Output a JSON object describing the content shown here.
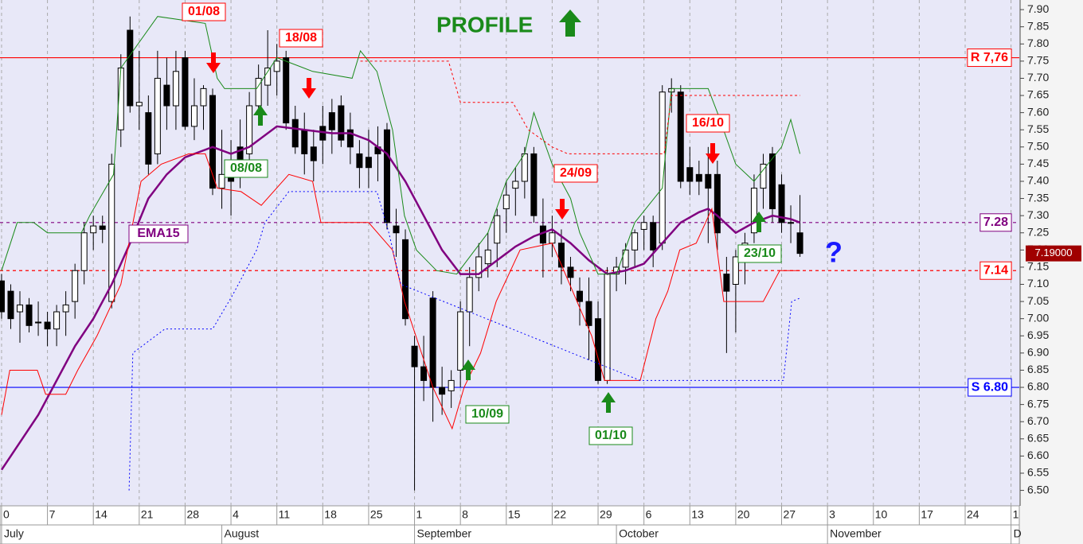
{
  "chart_data": {
    "type": "candlestick",
    "title": "PROFILE",
    "xlim": [
      -0.17,
      110.9
    ],
    "ylim": [
      6.455,
      7.928
    ],
    "grid": true,
    "up_color": "#ffffff",
    "down_color": "#000000",
    "x": [
      0,
      1,
      2,
      3,
      4,
      5,
      6,
      7,
      8,
      9,
      10,
      11,
      12,
      13,
      14,
      15,
      16,
      17,
      18,
      19,
      20,
      21,
      22,
      23,
      24,
      25,
      26,
      27,
      28,
      29,
      30,
      31,
      32,
      33,
      34,
      35,
      36,
      37,
      38,
      39,
      40,
      41,
      42,
      43,
      44,
      45,
      46,
      47,
      48,
      49,
      50,
      51,
      52,
      53,
      54,
      55,
      56,
      57,
      58,
      59,
      60,
      61,
      62,
      63,
      64,
      65,
      66,
      67,
      68,
      69,
      70,
      71,
      72,
      73,
      74,
      75,
      76,
      77,
      78,
      79,
      80,
      81,
      82,
      83,
      84,
      85,
      86,
      87
    ],
    "open": [
      7.11,
      7.08,
      7.02,
      7.04,
      6.99,
      6.99,
      6.97,
      7.02,
      7.05,
      7.14,
      7.25,
      7.27,
      7.05,
      7.55,
      7.84,
      7.62,
      7.6,
      7.48,
      7.68,
      7.62,
      7.76,
      7.56,
      7.62,
      7.65,
      7.38,
      7.42,
      7.5,
      7.48,
      7.62,
      7.68,
      7.72,
      7.76,
      7.58,
      7.55,
      7.5,
      7.56,
      7.6,
      7.62,
      7.55,
      7.48,
      7.47,
      7.5,
      7.55,
      7.27,
      7.23,
      6.92,
      6.86,
      7.06,
      6.8,
      6.79,
      6.85,
      7.02,
      7.12,
      7.16,
      7.22,
      7.32,
      7.38,
      7.4,
      7.48,
      7.27,
      7.22,
      7.22,
      7.15,
      7.08,
      7.05,
      7.0,
      6.82,
      7.13,
      7.15,
      7.2,
      7.26,
      7.28,
      7.22,
      7.66,
      7.66,
      7.44,
      7.42,
      7.42,
      7.42,
      7.13,
      7.1,
      7.18,
      7.25,
      7.38,
      7.48,
      7.39,
      7.28,
      7.25
    ],
    "high": [
      7.13,
      7.1,
      7.08,
      7.06,
      7.05,
      7.02,
      7.04,
      7.08,
      7.16,
      7.28,
      7.3,
      7.3,
      7.48,
      7.77,
      7.88,
      7.78,
      7.65,
      7.78,
      7.76,
      7.78,
      7.78,
      7.7,
      7.68,
      7.67,
      7.55,
      7.52,
      7.58,
      7.66,
      7.74,
      7.84,
      7.8,
      7.78,
      7.62,
      7.6,
      7.55,
      7.62,
      7.64,
      7.65,
      7.6,
      7.52,
      7.55,
      7.56,
      7.57,
      7.32,
      7.26,
      6.95,
      6.95,
      7.08,
      6.86,
      6.85,
      7.05,
      7.15,
      7.22,
      7.25,
      7.32,
      7.4,
      7.44,
      7.5,
      7.5,
      7.35,
      7.3,
      7.26,
      7.18,
      7.12,
      7.12,
      7.05,
      7.15,
      7.18,
      7.22,
      7.26,
      7.3,
      7.3,
      7.68,
      7.7,
      7.68,
      7.5,
      7.46,
      7.5,
      7.46,
      7.18,
      7.2,
      7.25,
      7.42,
      7.48,
      7.5,
      7.42,
      7.33,
      7.36
    ],
    "low": [
      7.0,
      6.97,
      6.93,
      6.96,
      6.95,
      6.92,
      6.92,
      6.95,
      7.0,
      7.1,
      7.2,
      7.22,
      7.03,
      7.5,
      7.6,
      7.55,
      7.42,
      7.45,
      7.55,
      7.55,
      7.55,
      7.52,
      7.55,
      7.36,
      7.32,
      7.3,
      7.38,
      7.45,
      7.58,
      7.62,
      7.65,
      7.55,
      7.48,
      7.42,
      7.4,
      7.45,
      7.48,
      7.5,
      7.45,
      7.38,
      7.38,
      7.4,
      7.26,
      7.18,
      6.98,
      6.5,
      6.76,
      6.7,
      6.72,
      6.74,
      6.8,
      6.92,
      7.08,
      7.12,
      7.15,
      7.25,
      7.3,
      7.35,
      7.28,
      7.12,
      7.18,
      7.1,
      7.08,
      6.98,
      6.88,
      6.81,
      6.81,
      7.08,
      7.1,
      7.15,
      7.2,
      7.15,
      7.2,
      7.6,
      7.38,
      7.36,
      7.36,
      7.22,
      7.2,
      6.9,
      6.96,
      7.1,
      7.22,
      7.32,
      7.28,
      7.25,
      7.22,
      7.18
    ],
    "close": [
      7.02,
      7.0,
      7.04,
      6.98,
      6.99,
      6.97,
      7.02,
      7.04,
      7.14,
      7.25,
      7.27,
      7.26,
      7.45,
      7.73,
      7.62,
      7.63,
      7.45,
      7.7,
      7.62,
      7.72,
      7.56,
      7.62,
      7.67,
      7.38,
      7.42,
      7.4,
      7.46,
      7.62,
      7.7,
      7.73,
      7.75,
      7.57,
      7.5,
      7.48,
      7.46,
      7.52,
      7.55,
      7.52,
      7.5,
      7.44,
      7.44,
      7.48,
      7.28,
      7.25,
      7.0,
      6.86,
      6.82,
      6.8,
      6.78,
      6.82,
      7.02,
      7.12,
      7.18,
      7.2,
      7.3,
      7.36,
      7.4,
      7.48,
      7.3,
      7.22,
      7.25,
      7.15,
      7.12,
      7.05,
      6.98,
      6.82,
      7.13,
      7.15,
      7.2,
      7.25,
      7.28,
      7.2,
      7.66,
      7.67,
      7.4,
      7.4,
      7.4,
      7.38,
      7.25,
      7.08,
      7.18,
      7.22,
      7.38,
      7.45,
      7.32,
      7.28,
      7.28,
      7.19
    ],
    "series": [
      {
        "name": "EMA15",
        "color": "#800080",
        "width": 2.5,
        "dash": "none",
        "x": [
          0,
          4,
          8,
          10,
          12,
          14,
          16,
          18,
          20,
          23,
          25,
          27,
          30,
          33,
          36,
          38,
          40,
          42,
          44,
          46,
          48,
          50,
          52,
          54,
          56,
          58,
          60,
          62,
          64,
          66,
          68,
          70,
          72,
          74,
          76,
          77,
          78,
          80,
          82,
          84,
          86,
          87
        ],
        "values": [
          6.56,
          6.72,
          6.92,
          7.0,
          7.1,
          7.22,
          7.35,
          7.42,
          7.47,
          7.5,
          7.48,
          7.5,
          7.56,
          7.55,
          7.54,
          7.54,
          7.52,
          7.48,
          7.4,
          7.3,
          7.2,
          7.13,
          7.13,
          7.17,
          7.21,
          7.24,
          7.26,
          7.22,
          7.17,
          7.13,
          7.14,
          7.16,
          7.22,
          7.28,
          7.31,
          7.32,
          7.3,
          7.25,
          7.28,
          7.3,
          7.29,
          7.28
        ]
      },
      {
        "color": "#1a8a1a",
        "width": 1,
        "dash": "none",
        "x": [
          0,
          1.7,
          3.5,
          5,
          8.7,
          9.6,
          12.2,
          13,
          17,
          22.2,
          23.5,
          24.3,
          27.8,
          30,
          33.9,
          38.2,
          39.1,
          40.9,
          42.6,
          43.9,
          45.2,
          47.4,
          49.6,
          53,
          55,
          57,
          58,
          60,
          62,
          63,
          65,
          67,
          69,
          72,
          73,
          77,
          78,
          80,
          82,
          85,
          86,
          87
        ],
        "values": [
          7.14,
          7.28,
          7.28,
          7.25,
          7.25,
          7.3,
          7.42,
          7.73,
          7.88,
          7.86,
          7.7,
          7.67,
          7.67,
          7.76,
          7.72,
          7.7,
          7.78,
          7.72,
          7.55,
          7.3,
          7.2,
          7.14,
          7.13,
          7.25,
          7.4,
          7.48,
          7.6,
          7.45,
          7.35,
          7.25,
          7.13,
          7.13,
          7.28,
          7.38,
          7.67,
          7.67,
          7.6,
          7.45,
          7.4,
          7.5,
          7.58,
          7.48
        ]
      },
      {
        "color": "#ff0000",
        "width": 1,
        "dash": "none",
        "x": [
          0,
          0.9,
          3.9,
          4.8,
          7,
          8.3,
          10.4,
          13,
          15.2,
          17.4,
          20.4,
          22.2,
          23.5,
          26.1,
          28.3,
          31.3,
          33.9,
          34.8,
          40,
          42.6,
          43.9,
          47,
          49.1,
          50.4,
          52.2,
          53.9,
          56.5,
          60,
          64.3,
          65.7,
          69.6,
          71.3,
          72.6,
          73.9,
          75.7,
          77.4,
          78.7,
          83,
          84.8,
          87
        ],
        "values": [
          6.72,
          6.85,
          6.85,
          6.78,
          6.78,
          6.85,
          6.95,
          7.1,
          7.4,
          7.45,
          7.48,
          7.48,
          7.38,
          7.37,
          7.33,
          7.42,
          7.4,
          7.28,
          7.28,
          7.2,
          7.05,
          6.8,
          6.68,
          6.8,
          6.9,
          7.05,
          7.2,
          7.22,
          6.95,
          6.82,
          6.82,
          7.0,
          7.08,
          7.2,
          7.22,
          7.32,
          7.05,
          7.05,
          7.14,
          7.14
        ]
      },
      {
        "color": "#ff0000",
        "width": 1,
        "dash": "3,3",
        "x": [
          39.1,
          48.7,
          50,
          55.7,
          57.4,
          60,
          61.7,
          72.2,
          73,
          87
        ],
        "values": [
          7.75,
          7.75,
          7.63,
          7.63,
          7.55,
          7.5,
          7.48,
          7.48,
          7.65,
          7.65
        ]
      },
      {
        "color": "#0000ff",
        "width": 1,
        "dash": "2,3",
        "x": [
          13.9,
          14.3,
          17.8,
          23,
          25.2,
          27.8,
          28.7,
          31.3,
          40.9,
          42.2,
          43.5,
          69.6,
          85.2,
          86.1,
          87
        ],
        "values": [
          6.5,
          6.9,
          6.97,
          6.97,
          7.07,
          7.2,
          7.28,
          7.37,
          7.37,
          7.25,
          7.1,
          6.82,
          6.82,
          7.05,
          7.06
        ]
      }
    ],
    "levels": [
      {
        "value": 7.76,
        "label": "R 7,76",
        "color": "#ff0000",
        "dash": "none"
      },
      {
        "value": 7.28,
        "label": "7.28",
        "color": "#800080",
        "dash": "4,4"
      },
      {
        "value": 7.14,
        "label": "7.14",
        "color": "#ff0000",
        "dash": "4,4"
      },
      {
        "value": 6.8,
        "label": "S 6.80",
        "color": "#0000ff",
        "dash": "none"
      }
    ],
    "last_price": {
      "value": 7.19,
      "label": "7.19000"
    },
    "annotations": [
      "01/08",
      "18/08",
      "08/08",
      "10/09",
      "24/09",
      "01/10",
      "16/10",
      "23/10",
      "?"
    ],
    "yticks": [
      {
        "value": 6.5,
        "label": "6.50"
      },
      {
        "value": 6.55,
        "label": "6.55"
      },
      {
        "value": 6.6,
        "label": "6.60"
      },
      {
        "value": 6.65,
        "label": "6.65"
      },
      {
        "value": 6.7,
        "label": "6.70"
      },
      {
        "value": 6.75,
        "label": "6.75"
      },
      {
        "value": 6.8,
        "label": "6.80"
      },
      {
        "value": 6.85,
        "label": "6.85"
      },
      {
        "value": 6.9,
        "label": "6.90"
      },
      {
        "value": 6.95,
        "label": "6.95"
      },
      {
        "value": 7.0,
        "label": "7.00"
      },
      {
        "value": 7.05,
        "label": "7.05"
      },
      {
        "value": 7.1,
        "label": "7.10"
      },
      {
        "value": 7.15,
        "label": "7.15"
      },
      {
        "value": 7.2,
        "label": "7.20"
      },
      {
        "value": 7.25,
        "label": "7.25"
      },
      {
        "value": 7.3,
        "label": "7.30"
      },
      {
        "value": 7.35,
        "label": "7.35"
      },
      {
        "value": 7.4,
        "label": "7.40"
      },
      {
        "value": 7.45,
        "label": "7.45"
      },
      {
        "value": 7.5,
        "label": "7.50"
      },
      {
        "value": 7.55,
        "label": "7.55"
      },
      {
        "value": 7.6,
        "label": "7.60"
      },
      {
        "value": 7.65,
        "label": "7.65"
      },
      {
        "value": 7.7,
        "label": "7.70"
      },
      {
        "value": 7.75,
        "label": "7.75"
      },
      {
        "value": 7.8,
        "label": "7.80"
      },
      {
        "value": 7.85,
        "label": "7.85"
      },
      {
        "value": 7.9,
        "label": "7.90"
      }
    ],
    "xticks": [
      {
        "value": 0,
        "label": "0"
      },
      {
        "value": 5,
        "label": "7"
      },
      {
        "value": 10,
        "label": "14"
      },
      {
        "value": 15,
        "label": "21"
      },
      {
        "value": 20,
        "label": "28"
      },
      {
        "value": 25,
        "label": "4"
      },
      {
        "value": 30,
        "label": "11"
      },
      {
        "value": 35,
        "label": "18"
      },
      {
        "value": 40,
        "label": "25"
      },
      {
        "value": 45,
        "label": "1"
      },
      {
        "value": 50,
        "label": "8"
      },
      {
        "value": 55,
        "label": "15"
      },
      {
        "value": 60,
        "label": "22"
      },
      {
        "value": 65,
        "label": "29"
      },
      {
        "value": 70,
        "label": "6"
      },
      {
        "value": 75,
        "label": "13"
      },
      {
        "value": 80,
        "label": "20"
      },
      {
        "value": 85,
        "label": "27"
      },
      {
        "value": 90,
        "label": "3"
      },
      {
        "value": 95,
        "label": "10"
      },
      {
        "value": 100,
        "label": "17"
      },
      {
        "value": 105,
        "label": "24"
      },
      {
        "value": 110,
        "label": "1"
      }
    ],
    "month_ticks": [
      {
        "value": 0,
        "label": "July"
      },
      {
        "value": 24,
        "label": "August"
      },
      {
        "value": 45,
        "label": "September"
      },
      {
        "value": 67,
        "label": "October"
      },
      {
        "value": 90,
        "label": "November"
      },
      {
        "value": 110,
        "label": "D"
      }
    ]
  }
}
